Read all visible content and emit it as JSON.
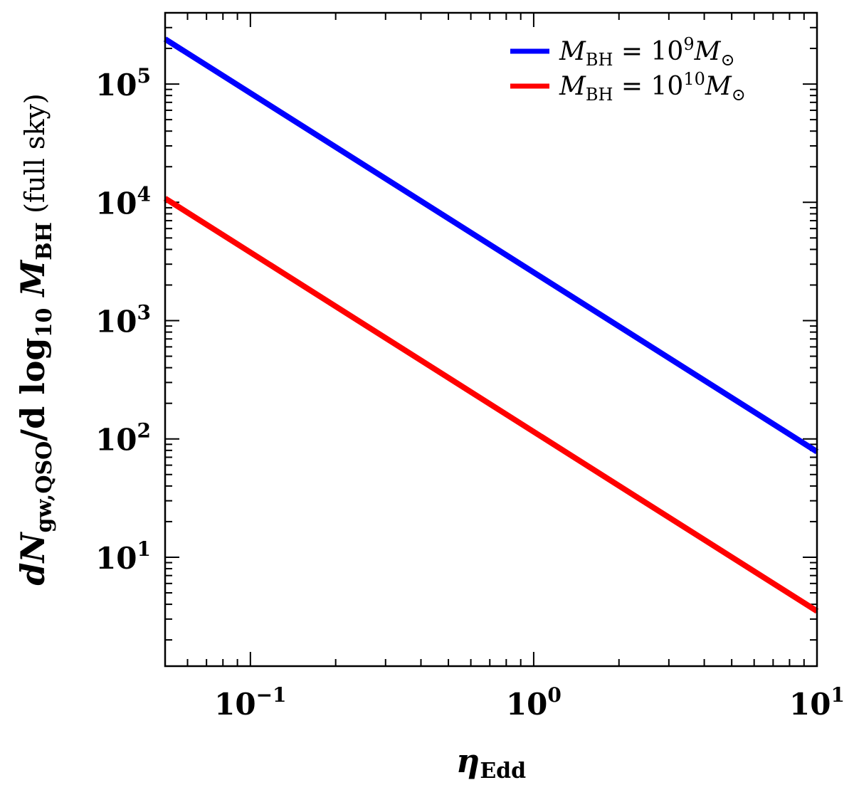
{
  "chart_data": {
    "type": "line",
    "xscale": "log",
    "yscale": "log",
    "xlim": [
      0.05,
      10
    ],
    "ylim": [
      1.2,
      400000
    ],
    "grid": false,
    "legend_position": "top-right",
    "xlabel": {
      "main": "η",
      "sub": "Edd"
    },
    "ylabel": {
      "part1": "dN",
      "sub1": "gw,QSO",
      "part2": "/d log",
      "sub2": "10",
      "part3": " M",
      "sub3": "BH",
      "part4": " (full sky)"
    },
    "x_ticks": [
      {
        "value": 0.1,
        "base": "10",
        "exp": "−1"
      },
      {
        "value": 1,
        "base": "10",
        "exp": "0"
      },
      {
        "value": 10,
        "base": "10",
        "exp": "1"
      }
    ],
    "y_ticks": [
      {
        "value": 10,
        "base": "10",
        "exp": "1"
      },
      {
        "value": 100,
        "base": "10",
        "exp": "2"
      },
      {
        "value": 1000,
        "base": "10",
        "exp": "3"
      },
      {
        "value": 10000,
        "base": "10",
        "exp": "4"
      },
      {
        "value": 100000,
        "base": "10",
        "exp": "5"
      }
    ],
    "series": [
      {
        "label": {
          "m": "M",
          "sub": "BH",
          "eq": " = 10",
          "sup": "9",
          "m2": "M",
          "sun": "⊙"
        },
        "color": "#0000ff",
        "x": [
          0.05,
          10
        ],
        "y": [
          240000,
          78
        ]
      },
      {
        "label": {
          "m": "M",
          "sub": "BH",
          "eq": " = 10",
          "sup": "10",
          "m2": "M",
          "sun": "⊙"
        },
        "color": "#ff0000",
        "x": [
          0.05,
          10
        ],
        "y": [
          10800,
          3.5
        ]
      }
    ]
  }
}
